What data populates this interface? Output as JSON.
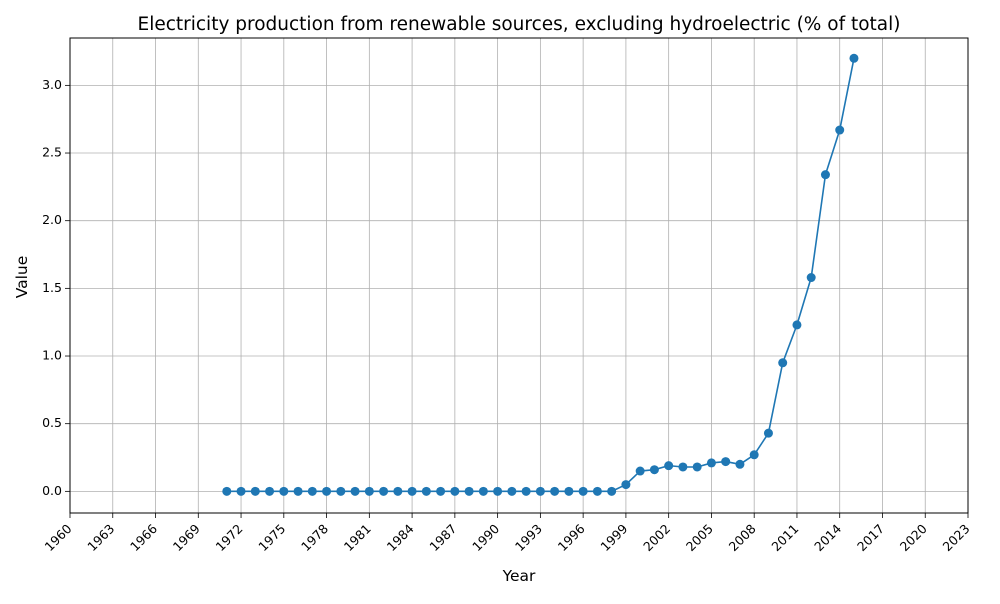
{
  "chart_data": {
    "type": "line",
    "title": "Electricity production from renewable sources, excluding hydroelectric (% of total)",
    "xlabel": "Year",
    "ylabel": "Value",
    "xlim": [
      1960,
      2023
    ],
    "ylim": [
      -0.16,
      3.35
    ],
    "x_ticks": [
      1960,
      1963,
      1966,
      1969,
      1972,
      1975,
      1978,
      1981,
      1984,
      1987,
      1990,
      1993,
      1996,
      1999,
      2002,
      2005,
      2008,
      2011,
      2014,
      2017,
      2020,
      2023
    ],
    "y_ticks": [
      0.0,
      0.5,
      1.0,
      1.5,
      2.0,
      2.5,
      3.0
    ],
    "y_tick_labels": [
      "0.0",
      "0.5",
      "1.0",
      "1.5",
      "2.0",
      "2.5",
      "3.0"
    ],
    "grid": true,
    "line_color": "#1f77b4",
    "series": [
      {
        "x": [
          1971,
          1972,
          1973,
          1974,
          1975,
          1976,
          1977,
          1978,
          1979,
          1980,
          1981,
          1982,
          1983,
          1984,
          1985,
          1986,
          1987,
          1988,
          1989,
          1990,
          1991,
          1992,
          1993,
          1994,
          1995,
          1996,
          1997,
          1998,
          1999,
          2000,
          2001,
          2002,
          2003,
          2004,
          2005,
          2006,
          2007,
          2008,
          2009,
          2010,
          2011,
          2012,
          2013,
          2014,
          2015
        ],
        "values": [
          0,
          0,
          0,
          0,
          0,
          0,
          0,
          0,
          0,
          0,
          0,
          0,
          0,
          0,
          0,
          0,
          0,
          0,
          0,
          0,
          0,
          0,
          0,
          0,
          0,
          0,
          0,
          0,
          0.05,
          0.15,
          0.16,
          0.19,
          0.18,
          0.18,
          0.21,
          0.22,
          0.2,
          0.27,
          0.43,
          0.95,
          1.23,
          1.58,
          2.34,
          2.67,
          3.2
        ]
      }
    ]
  }
}
